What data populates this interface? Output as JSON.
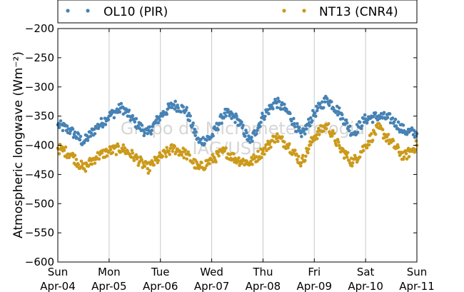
{
  "chart_data": {
    "type": "scatter",
    "ylabel": "Atmospheric longwave (Wm⁻²)",
    "ylim": [
      -600,
      -200
    ],
    "yticks": [
      -200,
      -250,
      -300,
      -350,
      -400,
      -450,
      -500,
      -550,
      -600
    ],
    "ytick_labels": [
      "−200",
      "−250",
      "−300",
      "−350",
      "−400",
      "−450",
      "−500",
      "−550",
      "−600"
    ],
    "xlim": [
      0,
      7
    ],
    "xticks": [
      {
        "pos": 0,
        "day": "Sun",
        "date": "Apr-04"
      },
      {
        "pos": 1,
        "day": "Mon",
        "date": "Apr-05"
      },
      {
        "pos": 2,
        "day": "Tue",
        "date": "Apr-06"
      },
      {
        "pos": 3,
        "day": "Wed",
        "date": "Apr-07"
      },
      {
        "pos": 4,
        "day": "Thu",
        "date": "Apr-08"
      },
      {
        "pos": 5,
        "day": "Fri",
        "date": "Apr-09"
      },
      {
        "pos": 6,
        "day": "Sat",
        "date": "Apr-10"
      },
      {
        "pos": 7,
        "day": "Sun",
        "date": "Apr-11"
      }
    ],
    "grid": "vertical",
    "legend": "top",
    "watermark": [
      "Grupo de Micrometeorologia",
      "IAG/USP"
    ],
    "series": [
      {
        "name": "OL10 (PIR)",
        "color": "#4682b4",
        "x": [
          0,
          0.25,
          0.5,
          0.75,
          1,
          1.25,
          1.5,
          1.75,
          2,
          2.25,
          2.5,
          2.75,
          3,
          3.25,
          3.5,
          3.75,
          4,
          4.25,
          4.5,
          4.75,
          5,
          5.25,
          5.5,
          5.75,
          6,
          6.25,
          6.5,
          6.75,
          7
        ],
        "y": [
          -365,
          -375,
          -395,
          -370,
          -350,
          -335,
          -360,
          -380,
          -350,
          -330,
          -340,
          -395,
          -385,
          -345,
          -355,
          -395,
          -350,
          -325,
          -345,
          -385,
          -345,
          -320,
          -345,
          -380,
          -355,
          -350,
          -355,
          -375,
          -380
        ]
      },
      {
        "name": "NT13 (CNR4)",
        "color": "#cc9a1a",
        "x": [
          0,
          0.25,
          0.5,
          0.75,
          1,
          1.25,
          1.5,
          1.75,
          2,
          2.25,
          2.5,
          2.75,
          3,
          3.25,
          3.5,
          3.75,
          4,
          4.25,
          4.5,
          4.75,
          5,
          5.25,
          5.5,
          5.75,
          6,
          6.25,
          6.5,
          6.75,
          7
        ],
        "y": [
          -405,
          -415,
          -440,
          -420,
          -410,
          -405,
          -420,
          -440,
          -420,
          -405,
          -415,
          -440,
          -425,
          -410,
          -425,
          -430,
          -410,
          -385,
          -400,
          -430,
          -385,
          -365,
          -405,
          -430,
          -400,
          -370,
          -395,
          -420,
          -400
        ]
      }
    ]
  }
}
